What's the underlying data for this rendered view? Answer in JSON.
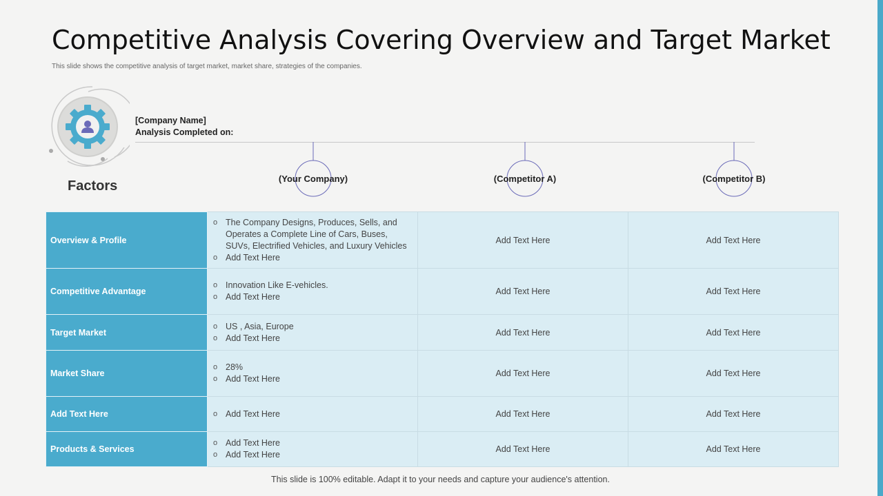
{
  "title": "Competitive Analysis Covering Overview and Target Market",
  "subtitle": "This slide shows the competitive analysis of target market, market share, strategies of the companies.",
  "company": {
    "name": "[Company Name]",
    "analysis_label": "Analysis Completed on:"
  },
  "factors_label": "Factors",
  "columns": [
    "(Your Company)",
    "(Competitor A)",
    "(Competitor B)"
  ],
  "rows": [
    {
      "factor": "Overview & Profile",
      "your_company": [
        "The Company Designs, Produces, Sells, and Operates a Complete Line of Cars, Buses, SUVs, Electrified Vehicles, and Luxury Vehicles",
        "Add Text Here"
      ],
      "competitor_a": "Add Text Here",
      "competitor_b": "Add Text Here"
    },
    {
      "factor": "Competitive Advantage",
      "your_company": [
        "Innovation Like E-vehicles.",
        "Add Text Here"
      ],
      "competitor_a": "Add Text Here",
      "competitor_b": "Add Text Here"
    },
    {
      "factor": "Target Market",
      "your_company": [
        "US , Asia, Europe",
        "Add Text Here"
      ],
      "competitor_a": "Add Text Here",
      "competitor_b": "Add Text Here"
    },
    {
      "factor": "Market Share",
      "your_company": [
        "28%",
        "Add Text Here"
      ],
      "competitor_a": "Add Text Here",
      "competitor_b": "Add Text Here"
    },
    {
      "factor": "Add Text Here",
      "your_company": [
        "Add Text Here"
      ],
      "competitor_a": "Add Text Here",
      "competitor_b": "Add Text Here"
    },
    {
      "factor": "Products & Services",
      "your_company": [
        "Add Text Here",
        "Add Text Here"
      ],
      "competitor_a": "Add Text Here",
      "competitor_b": "Add Text Here"
    }
  ],
  "footer": "This slide is 100% editable. Adapt it to your needs and capture your audience's attention.",
  "icons": {
    "emblem": "gear-user-icon"
  },
  "colors": {
    "accent": "#4aabcd",
    "cell_bg": "#daedf4",
    "circle_stroke": "#6a6ab8"
  }
}
